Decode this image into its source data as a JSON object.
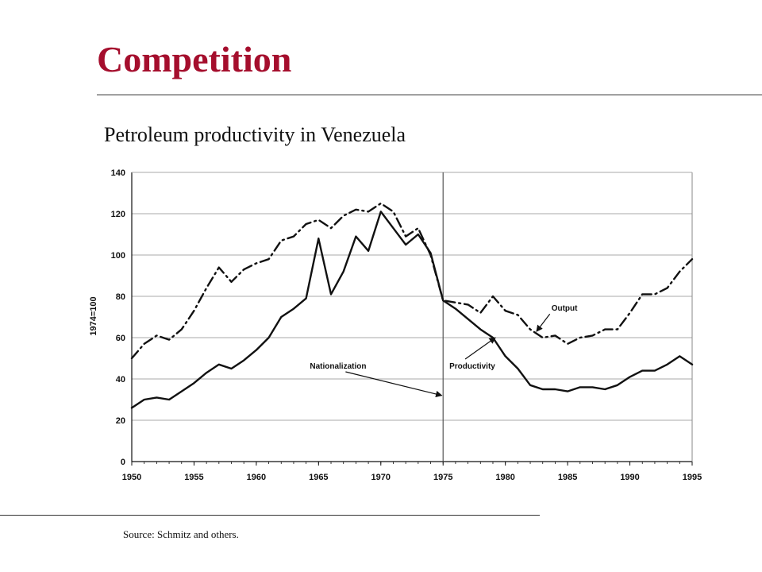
{
  "slide": {
    "title": "Competition",
    "subtitle": "Petroleum productivity in Venezuela",
    "source": "Source:  Schmitz and others.",
    "title_color": "#a50e2d"
  },
  "chart_data": {
    "type": "line",
    "ylabel": "1974=100",
    "xlabel": "",
    "xlim": [
      1950,
      1995
    ],
    "ylim": [
      0,
      140
    ],
    "grid": true,
    "x_ticks": [
      "1950",
      "1955",
      "1960",
      "1965",
      "1970",
      "1975",
      "1980",
      "1985",
      "1990",
      "1995"
    ],
    "y_ticks": [
      "0",
      "20",
      "40",
      "60",
      "80",
      "100",
      "120",
      "140"
    ],
    "vertical_marker": {
      "x": 1975
    },
    "series": [
      {
        "name": "Output",
        "style": "dash-dot",
        "x": [
          1950,
          1951,
          1952,
          1953,
          1954,
          1955,
          1956,
          1957,
          1958,
          1959,
          1960,
          1961,
          1962,
          1963,
          1964,
          1965,
          1966,
          1967,
          1968,
          1969,
          1970,
          1971,
          1972,
          1973,
          1974,
          1975,
          1976,
          1977,
          1978,
          1979,
          1980,
          1981,
          1982,
          1983,
          1984,
          1985,
          1986,
          1987,
          1988,
          1989,
          1990,
          1991,
          1992,
          1993,
          1994,
          1995
        ],
        "values": [
          50,
          57,
          61,
          59,
          64,
          73,
          84,
          94,
          87,
          93,
          96,
          98,
          107,
          109,
          115,
          117,
          113,
          119,
          122,
          121,
          125,
          121,
          109,
          113,
          100,
          78,
          77,
          76,
          72,
          80,
          73,
          71,
          64,
          60,
          61,
          57,
          60,
          61,
          64,
          64,
          72,
          81,
          81,
          84,
          92,
          98
        ]
      },
      {
        "name": "Productivity",
        "style": "solid",
        "x": [
          1950,
          1951,
          1952,
          1953,
          1954,
          1955,
          1956,
          1957,
          1958,
          1959,
          1960,
          1961,
          1962,
          1963,
          1964,
          1965,
          1966,
          1967,
          1968,
          1969,
          1970,
          1971,
          1972,
          1973,
          1974,
          1975,
          1976,
          1977,
          1978,
          1979,
          1980,
          1981,
          1982,
          1983,
          1984,
          1985,
          1986,
          1987,
          1988,
          1989,
          1990,
          1991,
          1992,
          1993,
          1994,
          1995
        ],
        "values": [
          26,
          30,
          31,
          30,
          34,
          38,
          43,
          47,
          45,
          49,
          54,
          60,
          70,
          74,
          79,
          108,
          81,
          92,
          109,
          102,
          121,
          113,
          105,
          110,
          101,
          78,
          74,
          69,
          64,
          60,
          51,
          45,
          37,
          35,
          35,
          34,
          36,
          36,
          35,
          37,
          41,
          44,
          44,
          47,
          51,
          47
        ]
      }
    ],
    "annotations": [
      {
        "text": "Output",
        "x": 1983.7,
        "y": 73,
        "arrow_to": {
          "x": 1982.5,
          "y": 63
        }
      },
      {
        "text": "Productivity",
        "x": 1975.5,
        "y": 45,
        "arrow_to": {
          "x": 1979.2,
          "y": 60
        }
      },
      {
        "text": "Nationalization",
        "x": 1964.3,
        "y": 45,
        "arrow_to": {
          "x": 1974.9,
          "y": 32
        }
      }
    ]
  }
}
